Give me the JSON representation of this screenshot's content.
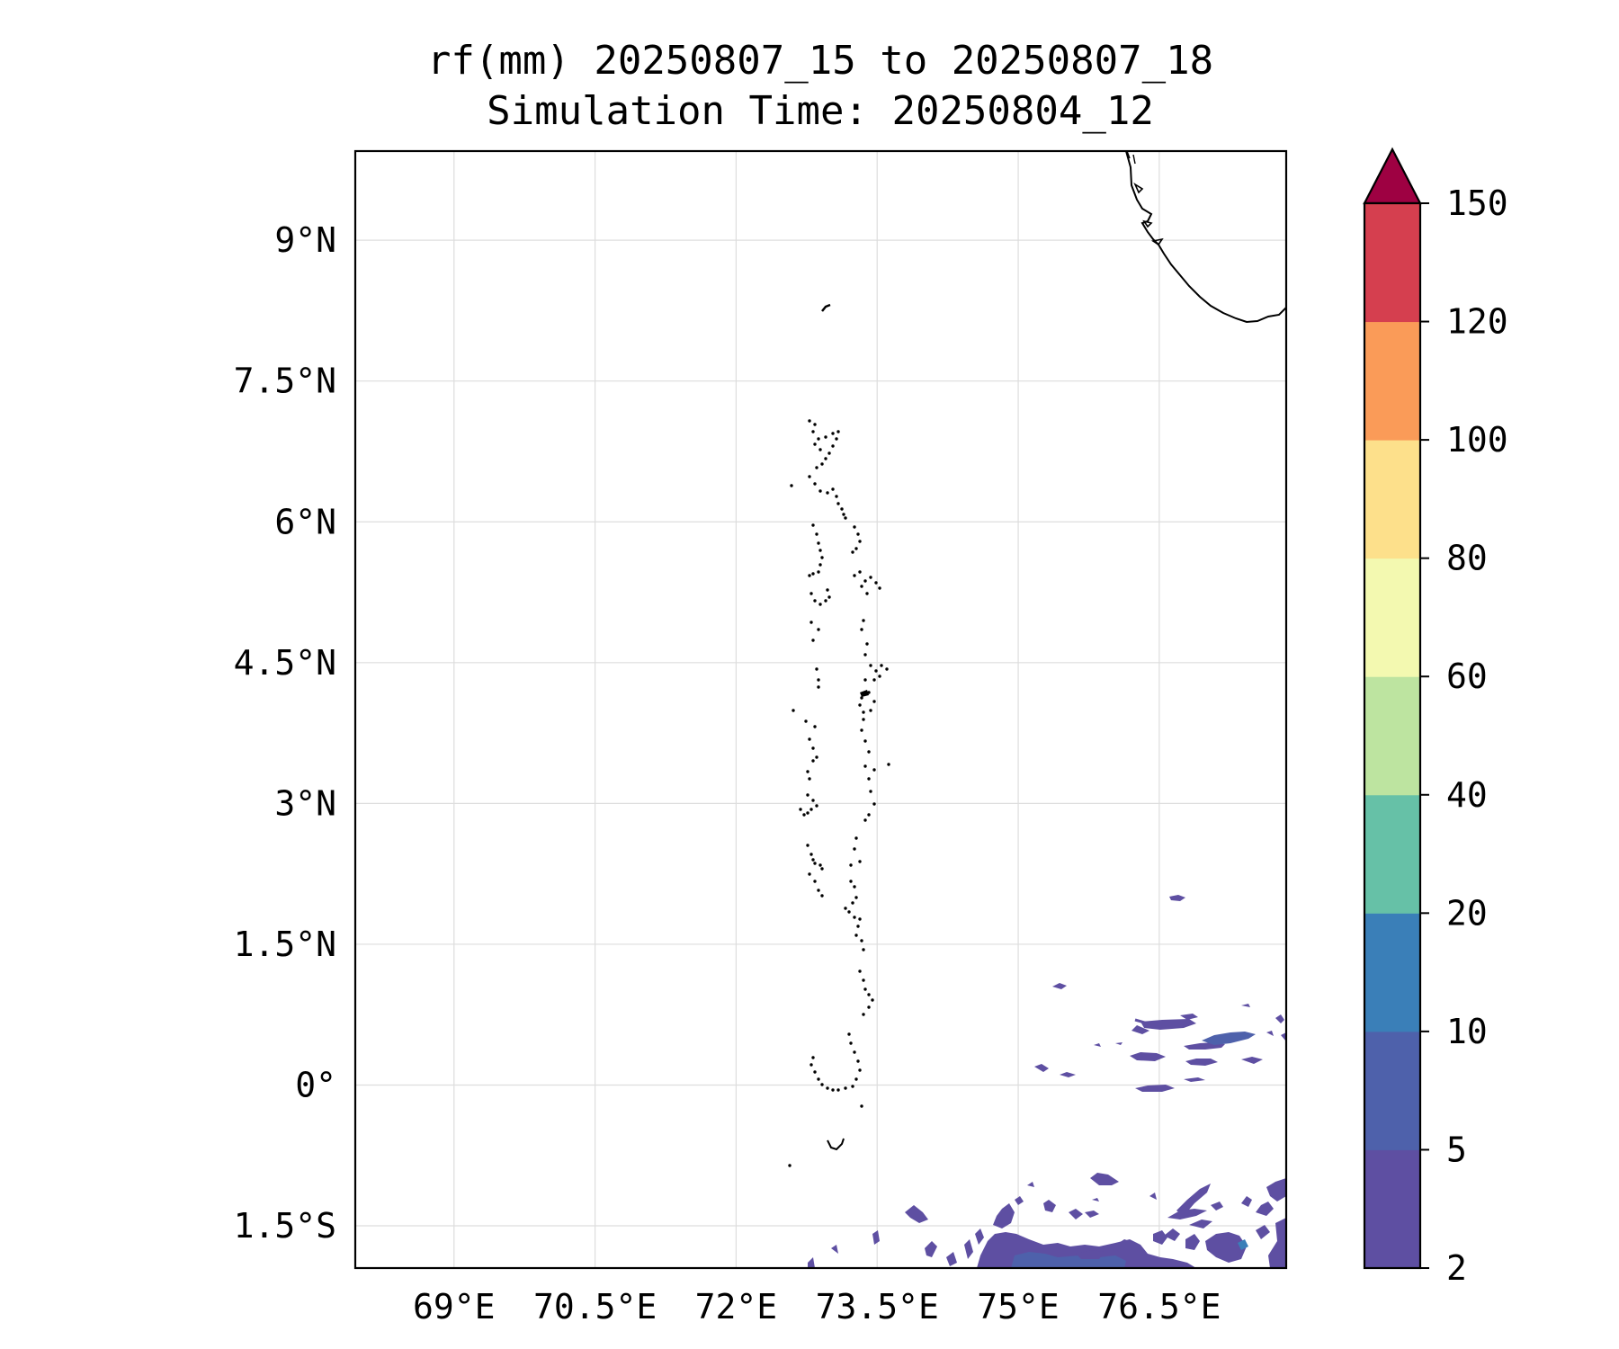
{
  "title": {
    "line1": "rf(mm) 20250807_15 to 20250807_18",
    "line2": "Simulation Time: 20250804_12"
  },
  "map": {
    "lon_range": [
      67.95,
      77.85
    ],
    "lat_range": [
      -1.95,
      9.95
    ],
    "grid": true,
    "x_ticks": [
      {
        "value": 69,
        "label": "69°E"
      },
      {
        "value": 70.5,
        "label": "70.5°E"
      },
      {
        "value": 72,
        "label": "72°E"
      },
      {
        "value": 73.5,
        "label": "73.5°E"
      },
      {
        "value": 75,
        "label": "75°E"
      },
      {
        "value": 76.5,
        "label": "76.5°E"
      }
    ],
    "y_ticks": [
      {
        "value": 9,
        "label": "9°N"
      },
      {
        "value": 7.5,
        "label": "7.5°N"
      },
      {
        "value": 6,
        "label": "6°N"
      },
      {
        "value": 4.5,
        "label": "4.5°N"
      },
      {
        "value": 3,
        "label": "3°N"
      },
      {
        "value": 1.5,
        "label": "1.5°N"
      },
      {
        "value": 0,
        "label": "0°"
      },
      {
        "value": -1.5,
        "label": "1.5°S"
      }
    ]
  },
  "colorbar": {
    "levels": [
      "2",
      "5",
      "10",
      "20",
      "40",
      "60",
      "80",
      "100",
      "120",
      "150"
    ],
    "colors": [
      "#5e4fa2",
      "#4e61ab",
      "#3a7fb8",
      "#66c1a7",
      "#bde4a0",
      "#f3f9b0",
      "#fde08b",
      "#fa9b58",
      "#d53f4f"
    ],
    "extend_color": "#9e0142",
    "extend": "max"
  },
  "colors": {
    "rain_low": "#5e4fa2",
    "rain_mid": "#4e61ab",
    "rain_blue": "#3a7fb8"
  }
}
